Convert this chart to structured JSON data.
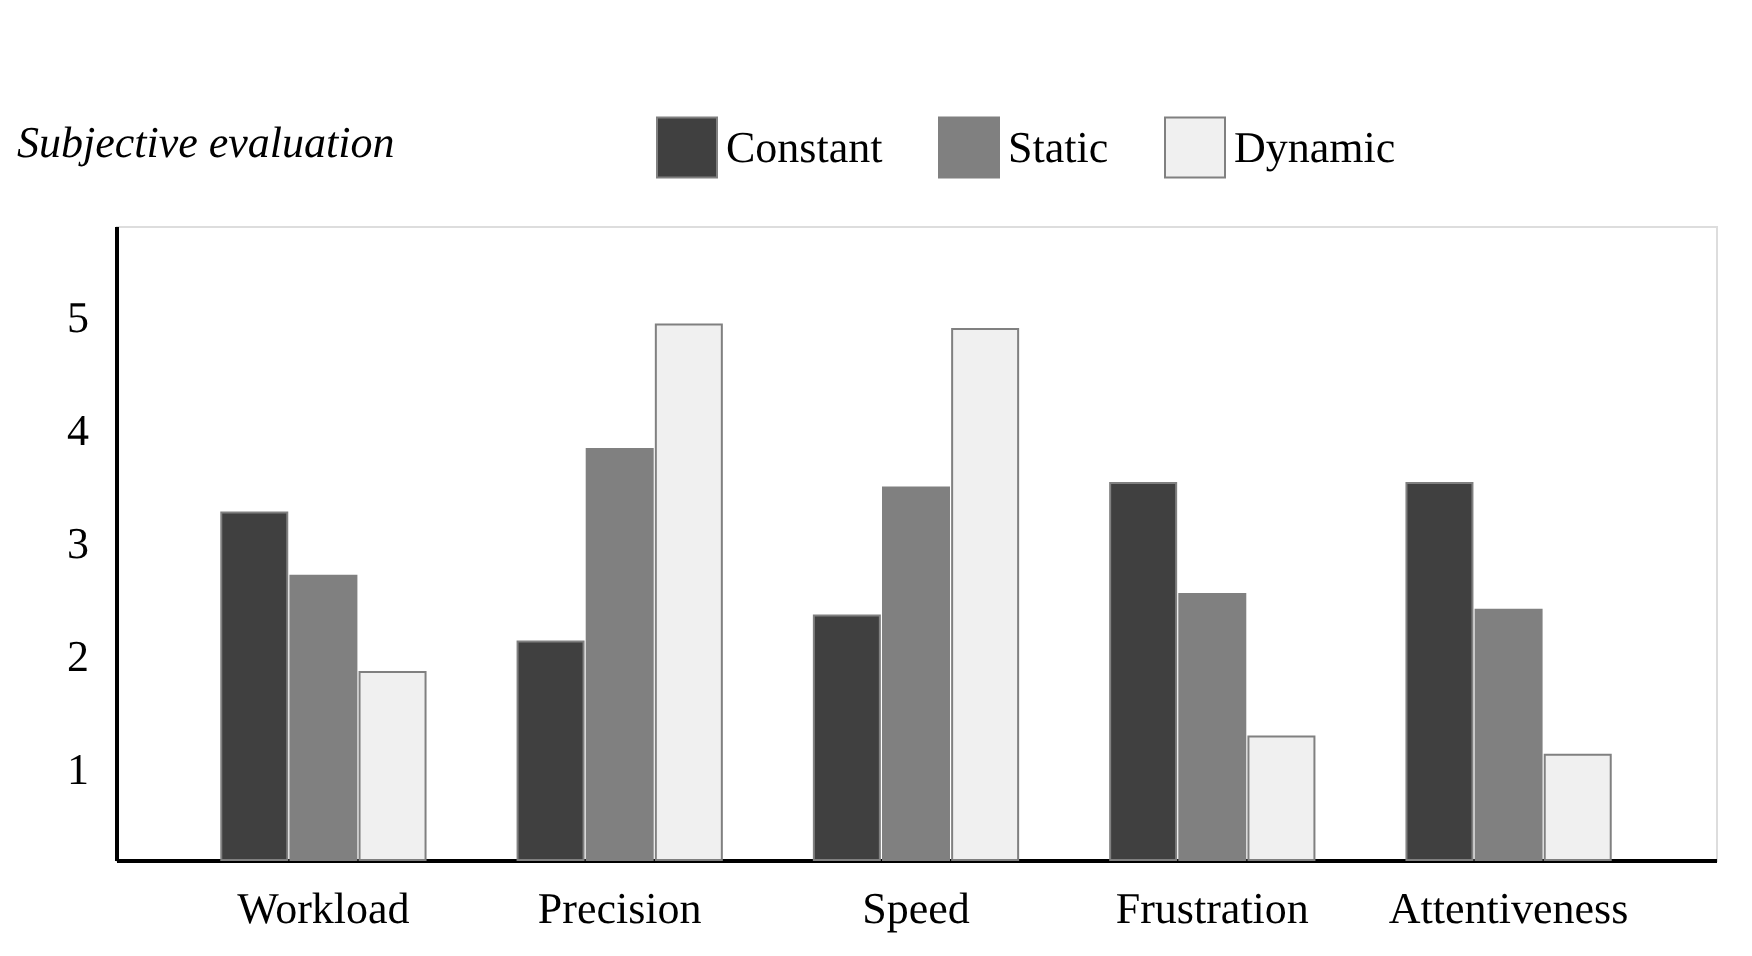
{
  "chart_data": {
    "type": "bar",
    "ylabel": "Subjective evaluation",
    "categories": [
      "Workload",
      "Precision",
      "Speed",
      "Frustration",
      "Attentiveness"
    ],
    "series": [
      {
        "name": "Constant",
        "color": "#404040",
        "values": [
          3.27,
          2.13,
          2.36,
          3.53,
          3.53
        ]
      },
      {
        "name": "Static",
        "color": "#808080",
        "values": [
          2.71,
          3.83,
          3.49,
          2.55,
          2.41
        ]
      },
      {
        "name": "Dynamic",
        "color": "#f0f0f0",
        "values": [
          1.86,
          4.93,
          4.89,
          1.29,
          1.13
        ]
      }
    ],
    "ylim": [
      0.2,
      5.8
    ],
    "yticks": [
      1,
      2,
      3,
      4,
      5
    ],
    "grid": false,
    "legend": "top right"
  }
}
